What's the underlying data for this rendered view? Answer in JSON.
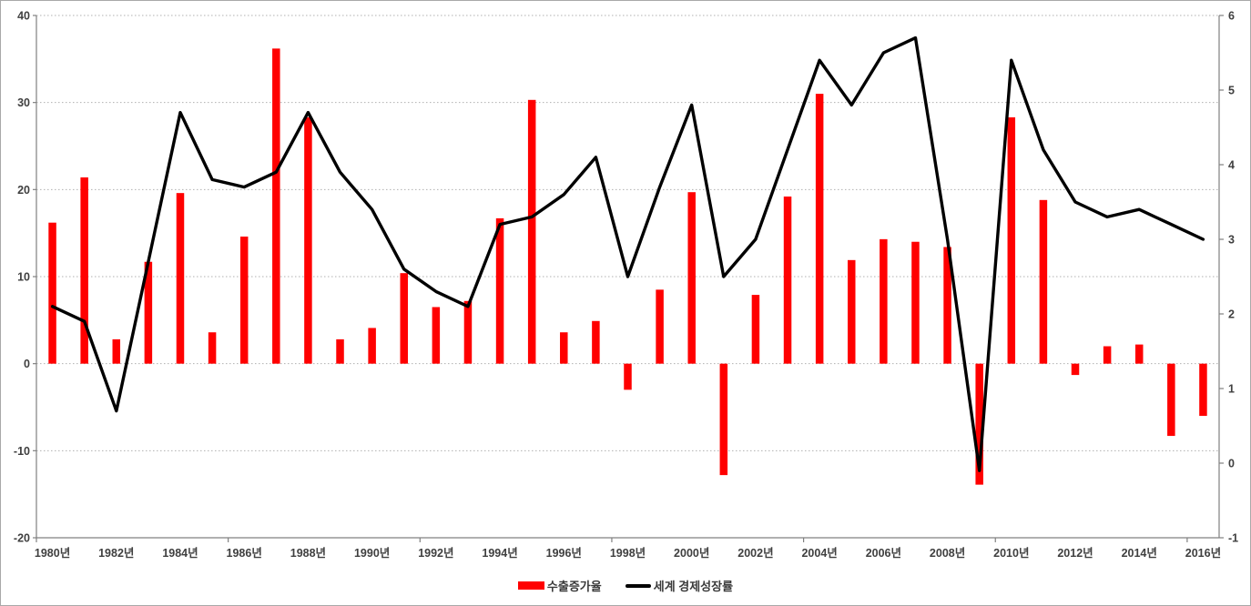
{
  "chart_data": {
    "type": "bar",
    "combo": "bar+line dual-axis",
    "title": "",
    "x": [
      1980,
      1981,
      1982,
      1983,
      1984,
      1985,
      1986,
      1987,
      1988,
      1989,
      1990,
      1991,
      1992,
      1993,
      1994,
      1995,
      1996,
      1997,
      1998,
      1999,
      2000,
      2001,
      2002,
      2003,
      2004,
      2005,
      2006,
      2007,
      2008,
      2009,
      2010,
      2011,
      2012,
      2013,
      2014,
      2015,
      2016
    ],
    "x_tick_labels": [
      "1980년",
      "1982년",
      "1984년",
      "1986년",
      "1988년",
      "1990년",
      "1992년",
      "1994년",
      "1996년",
      "1998년",
      "2000년",
      "2002년",
      "2004년",
      "2006년",
      "2008년",
      "2010년",
      "2012년",
      "2014년",
      "2016년"
    ],
    "series": [
      {
        "name": "수출증가율",
        "type": "bar",
        "axis": "left",
        "color": "#ff0000",
        "values": [
          16.2,
          21.4,
          2.8,
          11.7,
          19.6,
          3.6,
          14.6,
          36.2,
          28.3,
          2.8,
          4.1,
          10.4,
          6.5,
          7.2,
          16.7,
          30.3,
          3.6,
          4.9,
          -3.0,
          8.5,
          19.7,
          -12.8,
          7.9,
          19.2,
          31.0,
          11.9,
          14.3,
          14.0,
          13.4,
          -13.9,
          28.3,
          18.8,
          -1.3,
          2.0,
          2.2,
          -8.3,
          -6.0
        ]
      },
      {
        "name": "세계 경제성장률",
        "type": "line",
        "axis": "right",
        "color": "#000000",
        "values": [
          2.1,
          1.9,
          0.7,
          2.7,
          4.7,
          3.8,
          3.7,
          3.9,
          4.7,
          3.9,
          3.4,
          2.6,
          2.3,
          2.1,
          3.2,
          3.3,
          3.6,
          4.1,
          2.5,
          3.7,
          4.8,
          2.5,
          3.0,
          4.2,
          5.4,
          4.8,
          5.5,
          5.7,
          3.0,
          -0.1,
          5.4,
          4.2,
          3.5,
          3.3,
          3.4,
          3.2,
          3.0
        ]
      }
    ],
    "left_axis": {
      "min": -20,
      "max": 40,
      "step": 10,
      "ticks": [
        40,
        30,
        20,
        10,
        0,
        -10,
        -20
      ]
    },
    "right_axis": {
      "min": -1,
      "max": 6,
      "step": 1,
      "ticks": [
        6,
        5,
        4,
        3,
        2,
        1,
        0,
        -1
      ]
    },
    "grid": "horizontal dotted at left-axis steps",
    "legend_position": "bottom center",
    "xlabel": "",
    "ylabel": ""
  },
  "legend": {
    "bar_label": "수출증가율",
    "line_label": "세계 경제성장률"
  },
  "colors": {
    "bar": "#ff0000",
    "line": "#000000",
    "grid": "#b0b0b0",
    "axis": "#808080",
    "text": "#3f3f3f",
    "background": "#ffffff",
    "frame_border": "#a9a9a9"
  }
}
